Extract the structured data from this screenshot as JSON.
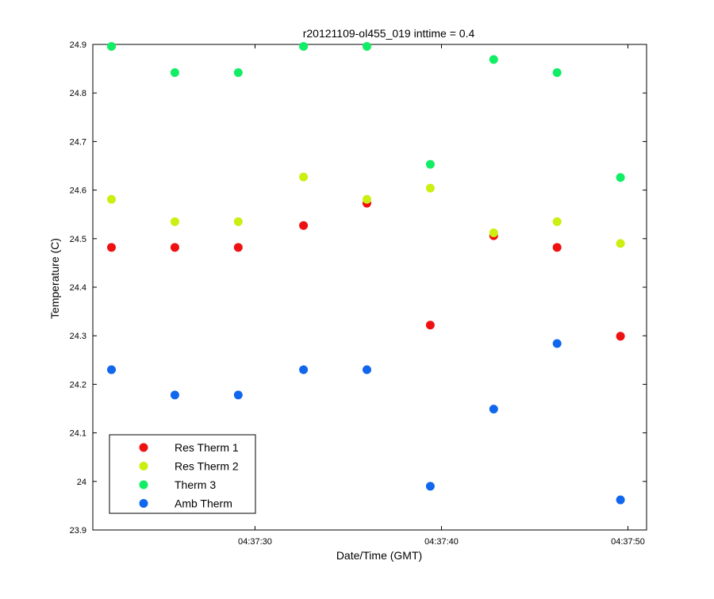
{
  "chart_data": {
    "type": "scatter",
    "title": "r20121109-ol455_019 inttime = 0.4",
    "xlabel": "Date/Time (GMT)",
    "ylabel": "Temperature (C)",
    "ylim": [
      23.9,
      24.9
    ],
    "xlim": [
      "04:37:21.3",
      "04:37:51.0"
    ],
    "grid": false,
    "legend_position": "bottom-left",
    "x": [
      "04:37:22.3",
      "04:37:25.7",
      "04:37:29.1",
      "04:37:32.6",
      "04:37:36.0",
      "04:37:39.4",
      "04:37:42.8",
      "04:37:46.2",
      "04:37:49.6"
    ],
    "x_ticks": [
      "04:37:30",
      "04:37:40",
      "04:37:50"
    ],
    "y_ticks": [
      "23.9",
      "24",
      "24.1",
      "24.2",
      "24.3",
      "24.4",
      "24.5",
      "24.6",
      "24.7",
      "24.8",
      "24.9"
    ],
    "series": [
      {
        "name": "Res Therm 1",
        "color": "#ee1111",
        "values": [
          24.482,
          24.482,
          24.482,
          24.527,
          24.573,
          24.322,
          24.506,
          24.482,
          24.299
        ]
      },
      {
        "name": "Res Therm 2",
        "color": "#ccee11",
        "values": [
          24.581,
          24.535,
          24.535,
          24.627,
          24.581,
          24.604,
          24.512,
          24.535,
          24.49
        ]
      },
      {
        "name": "Therm 3",
        "color": "#11ee66",
        "values": [
          24.896,
          24.842,
          24.842,
          24.896,
          24.896,
          24.653,
          24.869,
          24.842,
          24.626
        ]
      },
      {
        "name": "Amb Therm",
        "color": "#1166ee",
        "values": [
          24.23,
          24.178,
          24.178,
          24.23,
          24.23,
          23.99,
          24.149,
          24.284,
          23.962
        ]
      }
    ]
  }
}
